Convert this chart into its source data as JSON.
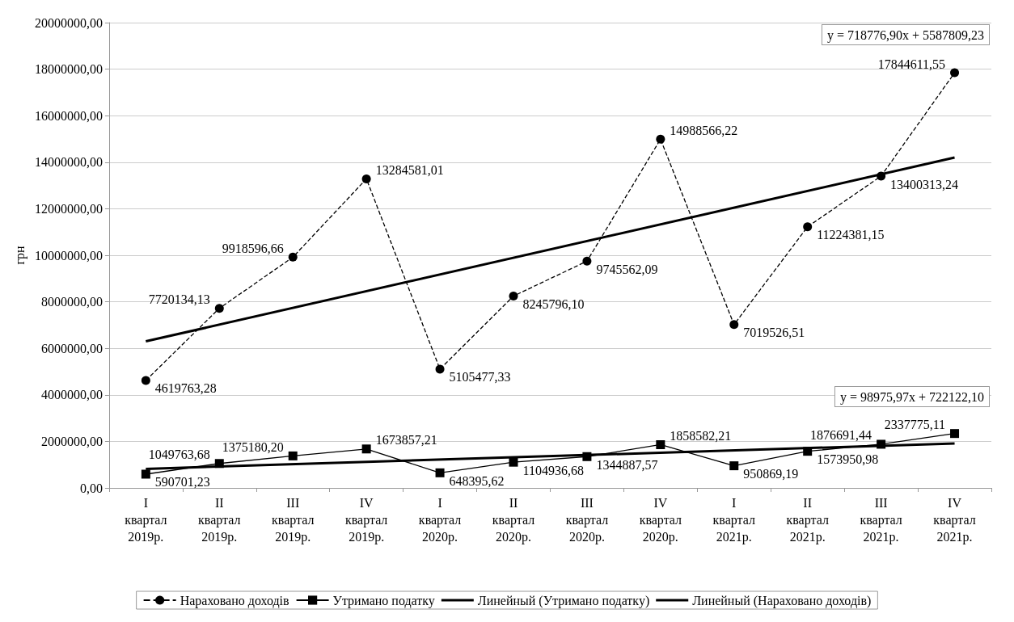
{
  "chart_data": {
    "type": "line",
    "ylabel": "грн",
    "categories": [
      "I квартал 2019р.",
      "II квартал 2019р.",
      "III квартал 2019р.",
      "IV квартал 2019р.",
      "I квартал 2020р.",
      "II квартал 2020р.",
      "III квартал 2020р.",
      "IV квартал 2020р.",
      "I квартал 2021р.",
      "II квартал 2021р.",
      "III квартал 2021р.",
      "IV квартал 2021р."
    ],
    "series": [
      {
        "name": "Нараховано доходів",
        "color": "#000000",
        "marker": "circle",
        "line_style": "dashed",
        "values": [
          4619763.28,
          7720134.13,
          9918596.66,
          13284581.01,
          5105477.33,
          8245796.1,
          9745562.09,
          14988566.22,
          7019526.51,
          11224381.15,
          13400313.24,
          17844611.55
        ],
        "value_labels": [
          "4619763,28",
          "7720134,13",
          "9918596,66",
          "13284581,01",
          "5105477,33",
          "8245796,10",
          "9745562,09",
          "14988566,22",
          "7019526,51",
          "11224381,15",
          "13400313,24",
          "17844611,55"
        ]
      },
      {
        "name": "Утримано податку",
        "color": "#000000",
        "marker": "square",
        "line_style": "solid",
        "values": [
          590701.23,
          1049763.68,
          1375180.2,
          1673857.21,
          648395.62,
          1104936.68,
          1344887.57,
          1858582.21,
          950869.19,
          1573950.98,
          1876691.44,
          2337775.11
        ],
        "value_labels": [
          "590701,23",
          "1049763,68",
          "1375180,20",
          "1673857,21",
          "648395,62",
          "1104936,68",
          "1344887,57",
          "1858582,21",
          "950869,19",
          "1573950,98",
          "1876691,44",
          "2337775,11"
        ]
      },
      {
        "name": "Линейный (Утримано податку)",
        "color": "#000000",
        "marker": "none",
        "line_style": "solid",
        "x": [
          "I квартал 2019р.",
          "IV квартал 2021р."
        ],
        "values": [
          820000,
          1910000
        ]
      },
      {
        "name": "Линейный (Нараховано доходів)",
        "color": "#000000",
        "marker": "none",
        "line_style": "solid",
        "x": [
          "I квартал 2019р.",
          "IV квартал 2021р."
        ],
        "values": [
          6300000,
          14200000
        ]
      }
    ],
    "ylim": [
      0,
      20000000
    ],
    "yticks": [
      {
        "value": 0,
        "label": "0,00"
      },
      {
        "value": 2000000,
        "label": "2000000,00"
      },
      {
        "value": 4000000,
        "label": "4000000,00"
      },
      {
        "value": 6000000,
        "label": "6000000,00"
      },
      {
        "value": 8000000,
        "label": "8000000,00"
      },
      {
        "value": 10000000,
        "label": "10000000,00"
      },
      {
        "value": 12000000,
        "label": "12000000,00"
      },
      {
        "value": 14000000,
        "label": "14000000,00"
      },
      {
        "value": 16000000,
        "label": "16000000,00"
      },
      {
        "value": 18000000,
        "label": "18000000,00"
      },
      {
        "value": 20000000,
        "label": "20000000,00"
      }
    ],
    "annotations": [
      "y = 718776,90x + 5587809,23",
      "y = 98975,97x + 722122,10"
    ],
    "grid": "y",
    "legend": "bottom"
  }
}
